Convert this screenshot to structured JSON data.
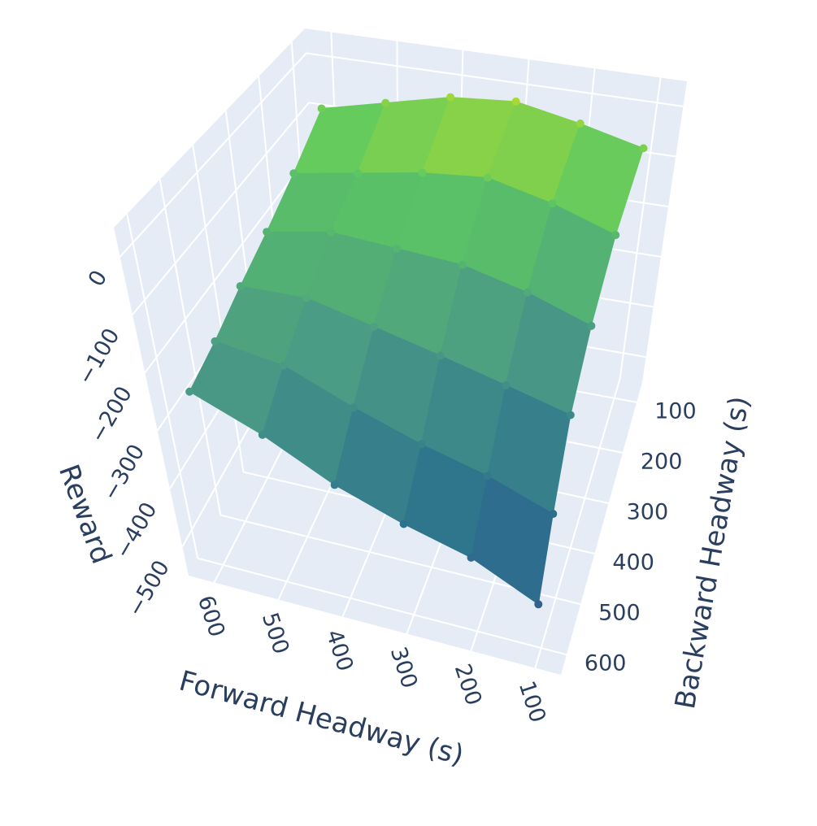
{
  "chart_data": {
    "type": "surface",
    "x_label": "Forward Headway (s)",
    "y_label": "Backward Headway (s)",
    "z_label": "Reward",
    "x": [
      100,
      200,
      300,
      400,
      500,
      600
    ],
    "y": [
      100,
      200,
      300,
      400,
      500,
      600
    ],
    "z": [
      [
        -60,
        -30,
        -5,
        -15,
        -45,
        -75
      ],
      [
        -150,
        -110,
        -80,
        -90,
        -110,
        -130
      ],
      [
        -240,
        -200,
        -170,
        -160,
        -150,
        -170
      ],
      [
        -320,
        -290,
        -260,
        -230,
        -200,
        -200
      ],
      [
        -410,
        -370,
        -340,
        -300,
        -250,
        -230
      ],
      [
        -480,
        -430,
        -400,
        -360,
        -300,
        -250
      ]
    ],
    "xlim": [
      640,
      60
    ],
    "ylim": [
      60,
      640
    ],
    "zlim": [
      -550,
      50
    ],
    "xticks": [
      100,
      200,
      300,
      400,
      500,
      600
    ],
    "yticks": [
      100,
      200,
      300,
      400,
      500,
      600
    ],
    "zticks": [
      {
        "value": -500,
        "label": "−500"
      },
      {
        "value": -400,
        "label": "−400"
      },
      {
        "value": -300,
        "label": "−300"
      },
      {
        "value": -200,
        "label": "−200"
      },
      {
        "value": -100,
        "label": "−100"
      },
      0
    ],
    "grid": true,
    "colorscale": [
      "#3b528b",
      "#2c728e",
      "#4a9a85",
      "#5ec962",
      "#d2e21b"
    ]
  }
}
